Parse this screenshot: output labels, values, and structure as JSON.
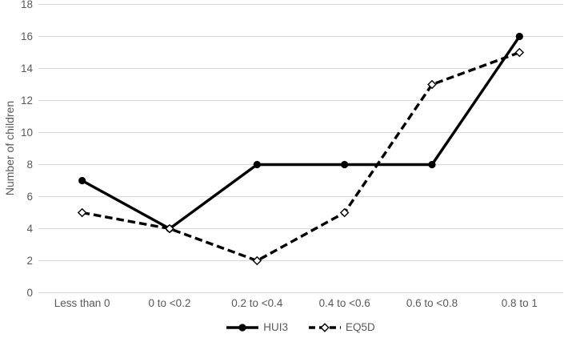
{
  "chart_data": {
    "type": "line",
    "title": "",
    "xlabel": "",
    "ylabel": "Number of children",
    "categories": [
      "Less than 0",
      "0 to <0.2",
      "0.2 to <0.4",
      "0.4 to <0.6",
      "0.6 to <0.8",
      "0.8 to 1"
    ],
    "series": [
      {
        "name": "HUI3",
        "values": [
          7,
          4,
          8,
          8,
          8,
          16
        ],
        "line_style": "solid",
        "marker": "circle-filled"
      },
      {
        "name": "EQ5D",
        "values": [
          5,
          4,
          2,
          5,
          13,
          15
        ],
        "line_style": "dashed",
        "marker": "diamond-open"
      }
    ],
    "ylim": [
      0,
      18
    ],
    "ytick_step": 2,
    "grid": true,
    "legend_position": "bottom-center",
    "colors": {
      "line": "#000000",
      "grid": "#d9d9d9",
      "text": "#595959",
      "background": "#ffffff"
    }
  }
}
